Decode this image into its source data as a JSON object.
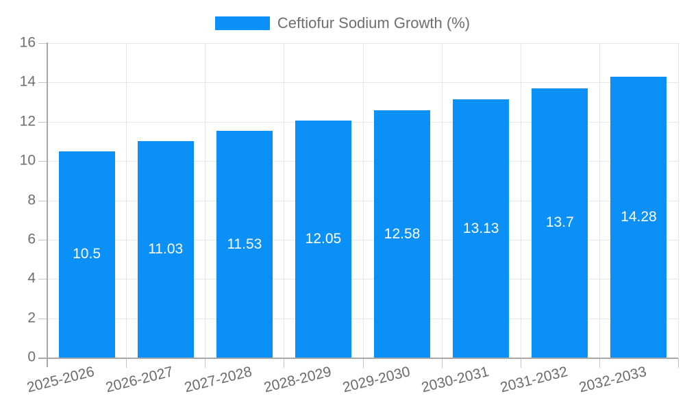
{
  "legend": {
    "label": "Ceftiofur Sodium Growth (%)"
  },
  "chart_data": {
    "type": "bar",
    "categories": [
      "2025-2026",
      "2026-2027",
      "2027-2028",
      "2028-2029",
      "2029-2030",
      "2030-2031",
      "2031-2032",
      "2032-2033"
    ],
    "values": [
      10.5,
      11.03,
      11.53,
      12.05,
      12.58,
      13.13,
      13.7,
      14.28
    ],
    "title": "",
    "xlabel": "",
    "ylabel": "",
    "ylim": [
      0,
      16
    ],
    "yticks": [
      0,
      2,
      4,
      6,
      8,
      10,
      12,
      14,
      16
    ],
    "grid": true,
    "legend_entries": [
      "Ceftiofur Sodium Growth (%)"
    ],
    "legend_position": "top-center",
    "bar_color": "#0b90f8",
    "value_label_color": "#ffffff",
    "axis_text_color": "#6f6f6f",
    "gridline_color": "#e6e6e6",
    "axis_line_color": "#a8a8a8"
  }
}
